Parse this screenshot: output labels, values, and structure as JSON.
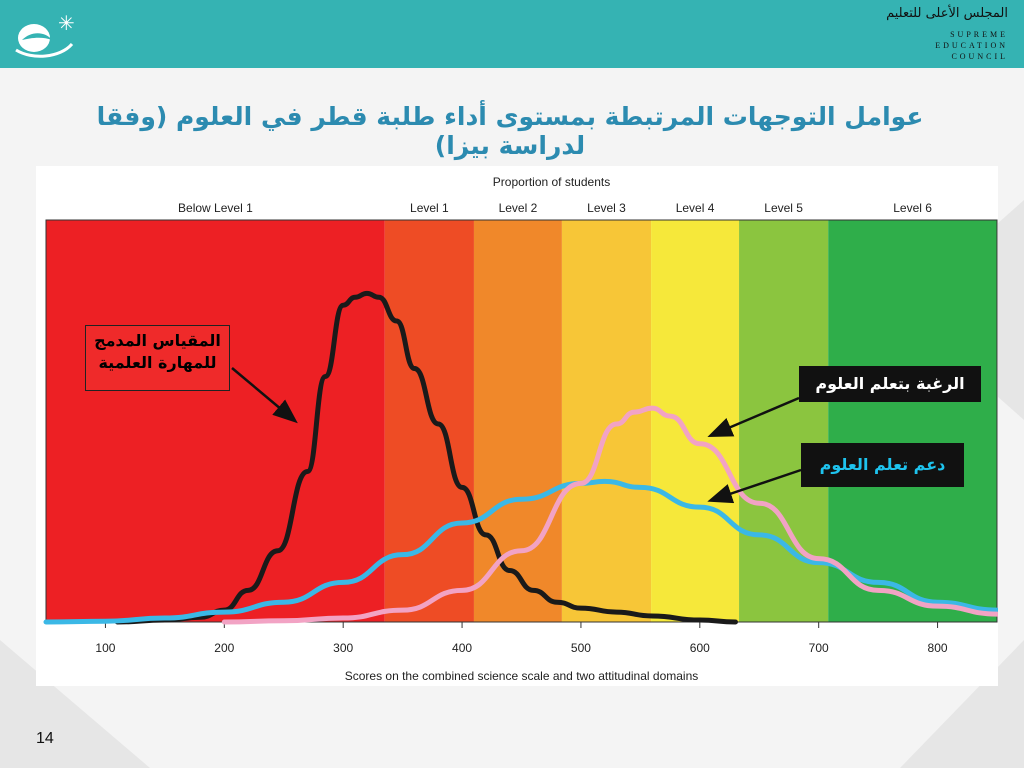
{
  "header": {
    "org_name_ar": "المجلس الأعلى للتعليم",
    "org_name_en": [
      "SUPREME",
      "EDUCATION",
      "COUNCIL"
    ]
  },
  "slide": {
    "title": "عوامل التوجهات المرتبطة بمستوى أداء طلبة قطر في العلوم (وفقا لدراسة بيزا)",
    "page_number": "14"
  },
  "callouts": {
    "skill": [
      "المقياس المدمج",
      "للمهارة العلمية"
    ],
    "desire": "الرغبة بتعلم العلوم",
    "support": "دعم تعلم العلوم"
  },
  "colors": {
    "header": "#35b3b3",
    "title": "#2c8bb0",
    "skill_curve": "#1a1a1a",
    "support_curve": "#3bb8e6",
    "desire_curve": "#f2a3c4"
  },
  "chart_data": {
    "type": "line",
    "title": "Proportion of students",
    "xlabel": "Scores on the combined science scale and two attitudinal domains",
    "ylabel": "",
    "xlim": [
      50,
      850
    ],
    "ylim": [
      0,
      1
    ],
    "x_ticks": [
      100,
      200,
      300,
      400,
      500,
      600,
      700,
      800
    ],
    "grid": false,
    "bands": [
      {
        "label": "Below Level 1",
        "from": 50,
        "to": 335,
        "color": "#ed2024"
      },
      {
        "label": "Level 1",
        "from": 335,
        "to": 410,
        "color": "#ee4c25"
      },
      {
        "label": "Level 2",
        "from": 410,
        "to": 484,
        "color": "#f0882a"
      },
      {
        "label": "Level 3",
        "from": 484,
        "to": 559,
        "color": "#f7c637"
      },
      {
        "label": "Level 4",
        "from": 559,
        "to": 633,
        "color": "#f6e83a"
      },
      {
        "label": "Level 5",
        "from": 633,
        "to": 708,
        "color": "#8bc53f"
      },
      {
        "label": "Level 6",
        "from": 708,
        "to": 850,
        "color": "#2fae4a"
      }
    ],
    "series": [
      {
        "name": "",
        "color": "#1a1a1a",
        "x": [
          110,
          150,
          180,
          200,
          220,
          245,
          270,
          285,
          300,
          310,
          320,
          330,
          345,
          360,
          380,
          400,
          420,
          440,
          460,
          480,
          500,
          530,
          560,
          600,
          630
        ],
        "y": [
          0.0,
          0.005,
          0.012,
          0.03,
          0.08,
          0.18,
          0.38,
          0.62,
          0.8,
          0.82,
          0.83,
          0.82,
          0.76,
          0.64,
          0.5,
          0.34,
          0.22,
          0.13,
          0.08,
          0.05,
          0.035,
          0.025,
          0.015,
          0.005,
          0.0
        ]
      },
      {
        "name": "",
        "color": "#3bb8e6",
        "x": [
          50,
          100,
          150,
          200,
          250,
          300,
          350,
          400,
          450,
          500,
          520,
          550,
          600,
          650,
          700,
          750,
          800,
          850
        ],
        "y": [
          0.0,
          0.002,
          0.01,
          0.025,
          0.05,
          0.1,
          0.17,
          0.25,
          0.31,
          0.35,
          0.355,
          0.34,
          0.29,
          0.22,
          0.15,
          0.1,
          0.05,
          0.03
        ]
      },
      {
        "name": "",
        "color": "#f2a3c4",
        "x": [
          200,
          250,
          300,
          350,
          400,
          450,
          500,
          530,
          545,
          560,
          575,
          600,
          650,
          700,
          750,
          800,
          850
        ],
        "y": [
          0.0,
          0.003,
          0.01,
          0.03,
          0.08,
          0.18,
          0.35,
          0.5,
          0.53,
          0.54,
          0.52,
          0.45,
          0.3,
          0.16,
          0.08,
          0.04,
          0.02
        ]
      }
    ]
  }
}
